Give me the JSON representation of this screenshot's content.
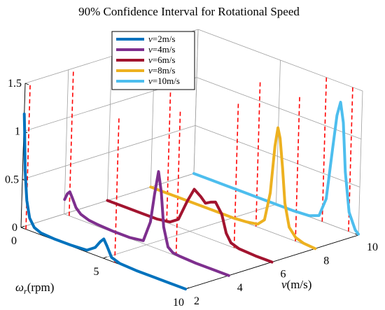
{
  "chart_data": {
    "type": "line",
    "title": "90% Confidence Interval for Rotational Speed",
    "xlabel_omega": "ω",
    "xlabel_sub": "r",
    "xlabel_unit": "(rpm)",
    "ylabel_v": "v",
    "ylabel_unit": "(m/s)",
    "x_ticks": [
      "0",
      "5",
      "10"
    ],
    "y_ticks": [
      "2",
      "4",
      "6",
      "8",
      "10"
    ],
    "z_ticks": [
      "0",
      "0.5",
      "1",
      "1.5"
    ],
    "xlim": [
      0,
      10
    ],
    "ylim": [
      2,
      10
    ],
    "zlim": [
      0,
      1.5
    ],
    "grid": true,
    "legend_position": "top-center",
    "series": [
      {
        "name": "v=2m/s",
        "name_italic": "v",
        "name_rest": "=2m/s",
        "v": 2,
        "color": "#0072BD",
        "x": [
          0,
          0.05,
          0.15,
          0.3,
          0.5,
          0.8,
          1.2,
          2,
          3,
          4,
          4.5,
          4.8,
          5,
          5.2,
          5.5,
          6,
          7,
          8,
          9,
          10
        ],
        "z": [
          1.18,
          1.0,
          0.6,
          0.3,
          0.13,
          0.05,
          0.02,
          0.01,
          0.01,
          0.02,
          0.08,
          0.16,
          0.2,
          0.14,
          0.04,
          0.01,
          0.0,
          0.0,
          0.0,
          0.0
        ],
        "ci": [
          0.3,
          5.7
        ]
      },
      {
        "name": "v=4m/s",
        "name_italic": "v",
        "name_rest": "=4m/s",
        "v": 4,
        "color": "#7E2F8E",
        "x": [
          0,
          0.15,
          0.3,
          0.45,
          0.7,
          1,
          1.5,
          2,
          3,
          4,
          4.8,
          5.2,
          5.4,
          5.6,
          5.8,
          6,
          6.3,
          6.6,
          7,
          8,
          9,
          10
        ],
        "z": [
          0.15,
          0.22,
          0.25,
          0.2,
          0.11,
          0.06,
          0.03,
          0.02,
          0.01,
          0.01,
          0.03,
          0.25,
          0.55,
          0.8,
          0.6,
          0.25,
          0.06,
          0.02,
          0.01,
          0.0,
          0.0,
          0.0
        ],
        "ci": [
          0.3,
          6.8
        ]
      },
      {
        "name": "v=6m/s",
        "name_italic": "v",
        "name_rest": "=6m/s",
        "v": 6,
        "color": "#A2142F",
        "x": [
          0,
          1,
          2,
          3,
          3.8,
          4.3,
          4.8,
          5.2,
          5.6,
          5.9,
          6.2,
          6.5,
          6.9,
          7.2,
          7.5,
          8,
          9,
          10
        ],
        "z": [
          0.0,
          0.0,
          0.0,
          0.0,
          0.02,
          0.08,
          0.3,
          0.45,
          0.4,
          0.35,
          0.38,
          0.4,
          0.3,
          0.12,
          0.04,
          0.01,
          0.0,
          0.0
        ],
        "ci": [
          3.6,
          7.7
        ]
      },
      {
        "name": "v=8m/s",
        "name_italic": "v",
        "name_rest": "=8m/s",
        "v": 8,
        "color": "#EDB120",
        "x": [
          0,
          1,
          2,
          3,
          4,
          5,
          5.8,
          6.5,
          6.9,
          7.2,
          7.4,
          7.55,
          7.7,
          7.9,
          8.1,
          8.4,
          8.8,
          9.3,
          10
        ],
        "z": [
          0.0,
          0.0,
          0.0,
          0.0,
          0.0,
          0.0,
          0.01,
          0.03,
          0.1,
          0.4,
          0.9,
          1.1,
          1.0,
          0.7,
          0.35,
          0.12,
          0.04,
          0.01,
          0.0
        ],
        "ci": [
          6.4,
          8.8
        ]
      },
      {
        "name": "v=10m/s",
        "name_italic": "v",
        "name_rest": "=10m/s",
        "v": 10,
        "color": "#4DBEEE",
        "x": [
          0,
          1,
          2,
          3,
          4,
          5,
          6,
          7,
          7.6,
          8.0,
          8.3,
          8.5,
          8.7,
          8.9,
          9.1,
          9.4,
          9.8,
          10
        ],
        "z": [
          0.0,
          0.0,
          0.0,
          0.0,
          0.0,
          0.0,
          0.0,
          0.01,
          0.05,
          0.25,
          0.8,
          1.15,
          1.3,
          1.1,
          0.6,
          0.2,
          0.04,
          0.01
        ],
        "ci": [
          7.8,
          9.4
        ]
      }
    ]
  }
}
